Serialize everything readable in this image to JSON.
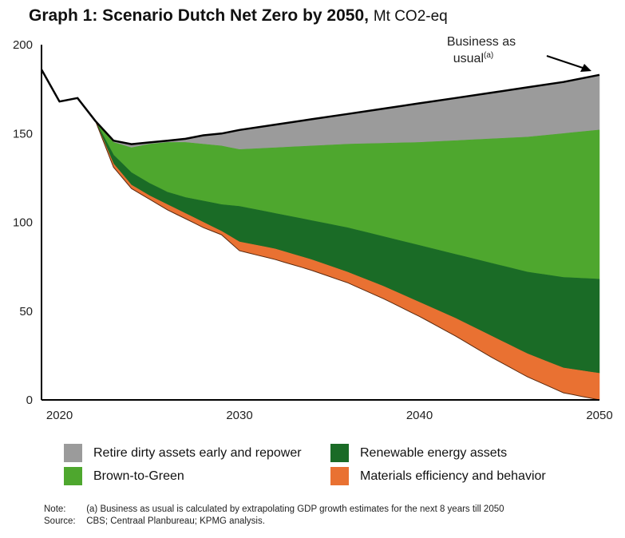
{
  "chart_data": {
    "type": "area",
    "title": "Graph 1: Scenario Dutch Net Zero by 2050,",
    "unit": "Mt CO2-eq",
    "xlabel": "",
    "ylabel": "",
    "ylim": [
      0,
      200
    ],
    "xlim": [
      2019,
      2050
    ],
    "y_ticks": [
      "0",
      "50",
      "100",
      "150",
      "200"
    ],
    "y_tick_values": [
      0,
      50,
      100,
      150,
      200
    ],
    "x_ticks": [
      "2020",
      "2030",
      "2040",
      "2050"
    ],
    "x_tick_values": [
      2020,
      2030,
      2040,
      2050
    ],
    "grid": false,
    "legend_position": "bottom",
    "business_as_usual": {
      "name": "Business as usual",
      "x": [
        2019,
        2020,
        2021,
        2022,
        2023,
        2024,
        2025,
        2026,
        2027,
        2028,
        2029,
        2030,
        2032,
        2034,
        2036,
        2038,
        2040,
        2042,
        2044,
        2046,
        2048,
        2050
      ],
      "values": [
        186,
        168,
        170,
        157,
        146,
        144,
        145,
        146,
        147,
        149,
        150,
        152,
        155,
        158,
        161,
        164,
        167,
        170,
        173,
        176,
        179,
        183
      ]
    },
    "boundaries_x": [
      2022,
      2023,
      2024,
      2025,
      2026,
      2027,
      2028,
      2029,
      2030,
      2032,
      2034,
      2036,
      2038,
      2040,
      2042,
      2044,
      2046,
      2048,
      2050
    ],
    "boundaries": {
      "retire_bottom": [
        157,
        145,
        142,
        144,
        145,
        145,
        144,
        143,
        141,
        142,
        143,
        144,
        144.5,
        145,
        146,
        147,
        148,
        150,
        152
      ],
      "brown_bottom": [
        157,
        138,
        128,
        122,
        117,
        114,
        112,
        110,
        109,
        105,
        101,
        97,
        92,
        87,
        82,
        77,
        72,
        69,
        68
      ],
      "renew_bottom": [
        157,
        133,
        121,
        115,
        110,
        105,
        100,
        95,
        89,
        85,
        79,
        72,
        64,
        55,
        46,
        36,
        26,
        18,
        15
      ],
      "orange_bottom": [
        157,
        131,
        119,
        113,
        107,
        102,
        97,
        93,
        84,
        79,
        73,
        66,
        57,
        47,
        36,
        24,
        13,
        4,
        0
      ]
    },
    "series": [
      {
        "name": "Retire dirty assets early and repower",
        "color": "#9b9b9b",
        "values_2050": 31
      },
      {
        "name": "Brown-to-Green",
        "color": "#4ea72e",
        "values_2050": 84
      },
      {
        "name": "Renewable energy assets",
        "color": "#1a6b26",
        "values_2050": 53
      },
      {
        "name": "Materials efficiency and behavior",
        "color": "#e97132",
        "values_2050": 15
      }
    ],
    "annotations": [
      {
        "text": "Business as",
        "text2": "usual",
        "superscript": "(a)"
      }
    ]
  },
  "title": {
    "bold": "Graph 1: Scenario Dutch Net Zero by 2050,",
    "unit": "Mt CO2-eq"
  },
  "legend": [
    {
      "label": "Retire dirty assets early and repower",
      "color": "#9b9b9b"
    },
    {
      "label": "Renewable energy assets",
      "color": "#1a6b26"
    },
    {
      "label": "Brown-to-Green",
      "color": "#4ea72e"
    },
    {
      "label": "Materials efficiency and behavior",
      "color": "#e97132"
    }
  ],
  "notes": {
    "note_label": "Note:",
    "note_text": "(a)   Business as usual is calculated by extrapolating GDP growth estimates for the next 8 years till 2050",
    "source_label": "Source:",
    "source_text": "CBS; Centraal Planbureau; KPMG analysis."
  }
}
